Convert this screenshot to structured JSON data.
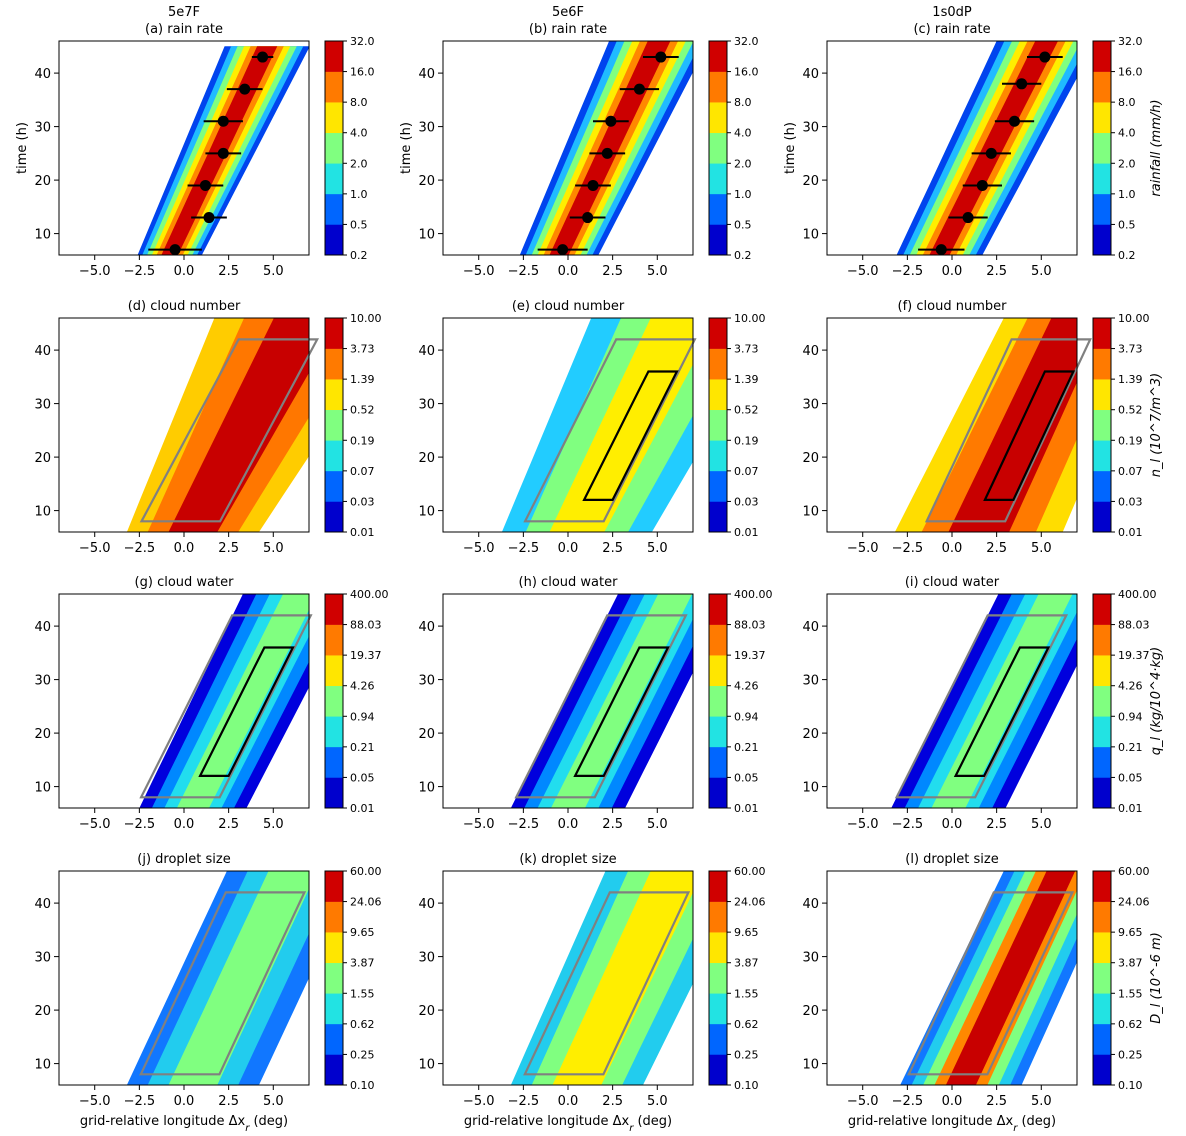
{
  "figure": {
    "column_titles": [
      "5e7F",
      "5e6F",
      "1s0dP"
    ],
    "xlabel": "grid-relative longitude Δx",
    "xlabel_sub": "r",
    "xlabel_unit": " (deg)",
    "ylabel": "time (h)"
  },
  "rows": [
    {
      "titles": [
        "(a) rain rate",
        "(b) rain rate",
        "(c) rain rate"
      ],
      "colorbar_ticks": [
        "0.2",
        "0.5",
        "1.0",
        "2.0",
        "4.0",
        "8.0",
        "16.0",
        "32.0"
      ],
      "colorbar_label": "rainfall (mm/h)"
    },
    {
      "titles": [
        "(d) cloud number",
        "(e) cloud number",
        "(f) cloud number"
      ],
      "colorbar_ticks": [
        "0.01",
        "0.03",
        "0.07",
        "0.19",
        "0.52",
        "1.39",
        "3.73",
        "10.00"
      ],
      "colorbar_label": "n_l (10^7/m^3)"
    },
    {
      "titles": [
        "(g) cloud water",
        "(h) cloud water",
        "(i) cloud water"
      ],
      "colorbar_ticks": [
        "0.01",
        "0.05",
        "0.21",
        "0.94",
        "4.26",
        "19.37",
        "88.03",
        "400.00"
      ],
      "colorbar_label": "q_l (kg/10^4·kg)"
    },
    {
      "titles": [
        "(j) droplet size",
        "(k) droplet size",
        "(l) droplet size"
      ],
      "colorbar_ticks": [
        "0.10",
        "0.25",
        "0.62",
        "1.55",
        "3.87",
        "9.65",
        "24.06",
        "60.00"
      ],
      "colorbar_label": "D_l (10^-6 m)"
    }
  ],
  "chart_data": {
    "type": "heatmap",
    "panel_grid": [
      4,
      3
    ],
    "xlim": [
      -7,
      7
    ],
    "ylim": [
      6,
      46
    ],
    "xticks": [
      -5.0,
      -2.5,
      0.0,
      2.5,
      5.0
    ],
    "xtick_labels": [
      "−5.0",
      "−2.5",
      "0.0",
      "2.5",
      "5.0"
    ],
    "yticks": [
      10,
      20,
      30,
      40
    ],
    "colormap": "jet",
    "colorbar_colors": [
      "#0000cd",
      "#0066ff",
      "#22e3e3",
      "#80ff80",
      "#ffe600",
      "#ff7a00",
      "#d00000"
    ],
    "band_colors": {
      "rain": [
        "#0044ee",
        "#20bbff",
        "#80ff80",
        "#ffee00",
        "#ff8800",
        "#cc0000"
      ],
      "cloud_number_A": [
        "#ffcc00",
        "#ff7700",
        "#c80000"
      ],
      "cloud_number_B": [
        "#22ccff",
        "#80ff80",
        "#ffee00"
      ],
      "cloud_number_C": [
        "#ffdd00",
        "#ff7a00",
        "#c80000"
      ],
      "cloud_water": [
        "#0000dd",
        "#0088ff",
        "#22ddee",
        "#80ff80"
      ],
      "droplet_A": [
        "#1177ff",
        "#22ccee",
        "#80ff80"
      ],
      "droplet_B": [
        "#22ccee",
        "#80ff80",
        "#ffee00"
      ],
      "droplet_C": [
        "#1177ff",
        "#22ccee",
        "#80ff80",
        "#ff8800",
        "#c80000"
      ]
    },
    "storm_track_markers": [
      {
        "panel": "(a)",
        "points": [
          {
            "x": 4.4,
            "y": 43,
            "xerr": 0.6
          },
          {
            "x": 3.4,
            "y": 37,
            "xerr": 1.0
          },
          {
            "x": 2.2,
            "y": 31,
            "xerr": 1.1
          },
          {
            "x": 2.2,
            "y": 25,
            "xerr": 1.0
          },
          {
            "x": 1.2,
            "y": 19,
            "xerr": 1.0
          },
          {
            "x": 1.4,
            "y": 13,
            "xerr": 1.0
          },
          {
            "x": -0.5,
            "y": 7,
            "xerr": 1.5
          }
        ]
      },
      {
        "panel": "(b)",
        "points": [
          {
            "x": 5.2,
            "y": 43,
            "xerr": 1.0
          },
          {
            "x": 4.0,
            "y": 37,
            "xerr": 1.1
          },
          {
            "x": 2.4,
            "y": 31,
            "xerr": 1.0
          },
          {
            "x": 2.2,
            "y": 25,
            "xerr": 1.0
          },
          {
            "x": 1.4,
            "y": 19,
            "xerr": 1.0
          },
          {
            "x": 1.1,
            "y": 13,
            "xerr": 1.0
          },
          {
            "x": -0.3,
            "y": 7,
            "xerr": 1.4
          }
        ]
      },
      {
        "panel": "(c)",
        "points": [
          {
            "x": 5.2,
            "y": 43,
            "xerr": 1.0
          },
          {
            "x": 3.9,
            "y": 38,
            "xerr": 1.1
          },
          {
            "x": 3.5,
            "y": 31,
            "xerr": 1.1
          },
          {
            "x": 2.2,
            "y": 25,
            "xerr": 1.1
          },
          {
            "x": 1.7,
            "y": 19,
            "xerr": 1.1
          },
          {
            "x": 0.9,
            "y": 13,
            "xerr": 1.1
          },
          {
            "x": -0.6,
            "y": 7,
            "xerr": 1.3
          }
        ]
      }
    ],
    "contour_colors": [
      "#808080",
      "#000000"
    ]
  }
}
